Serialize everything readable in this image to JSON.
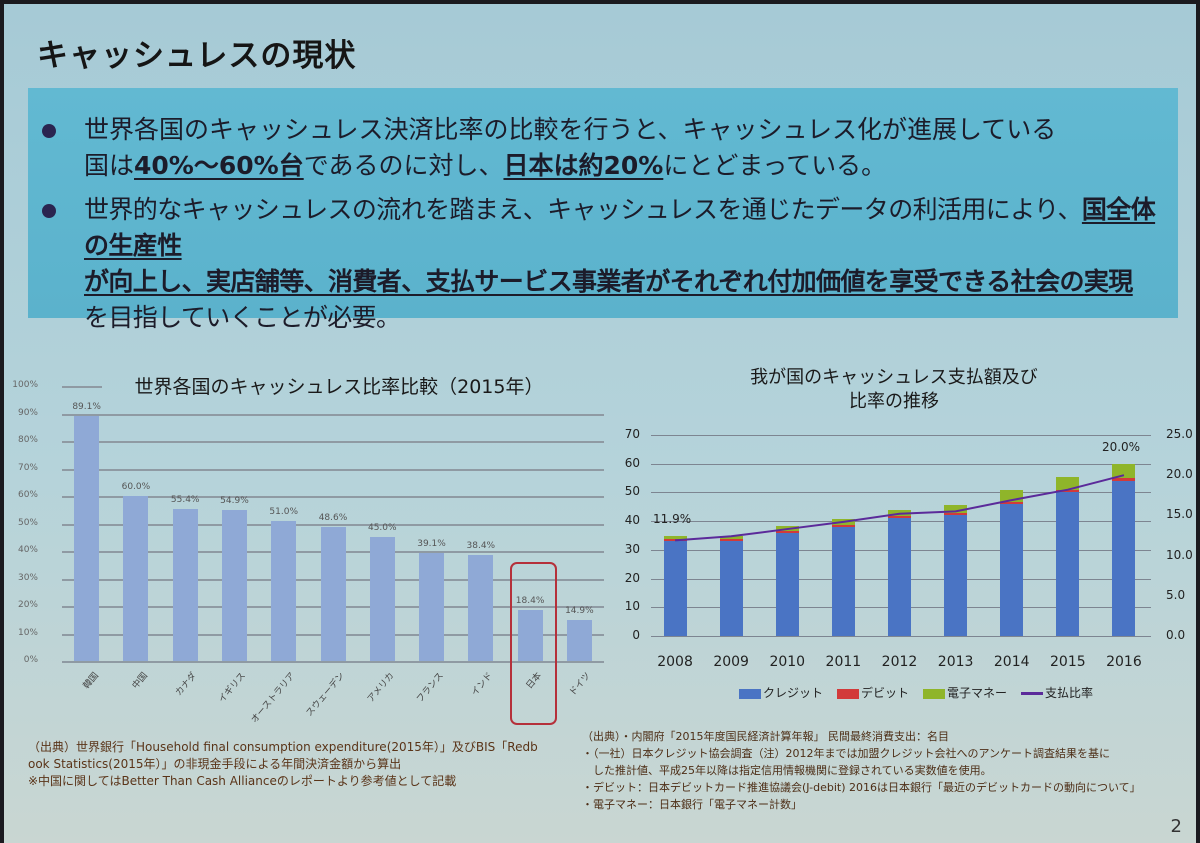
{
  "slide": {
    "title": "キャッシュレスの現状",
    "page_number": "2",
    "bullets": [
      {
        "line1": "世界各国のキャッシュレス決済比率の比較を行うと、キャッシュレス化が進展している",
        "line2_pre": "国は",
        "line2_b1": "40%～60%台",
        "line2_mid": "であるのに対し、",
        "line2_b2": "日本は約20%",
        "line2_post": "にとどまっている。"
      },
      {
        "line1_pre": "世界的なキャッシュレスの流れを踏まえ、キャッシュレスを通じたデータの利活用により、",
        "line1_b": "国全体の生産性",
        "line2_b": "が向上し、実店舗等、消費者、支払サービス事業者がそれぞれ付加価値を享受できる社会の実現",
        "line3": "を目指していくことが必要。"
      }
    ],
    "left_note": {
      "line1": "（出典）世界銀行「Household final consumption expenditure(2015年）」及びBIS「Redb",
      "line2": "ook Statistics(2015年）」の非現金手段による年間決済金額から算出",
      "line3": "※中国に関してはBetter Than Cash Allianceのレポートより参考値として記載"
    },
    "right_note": {
      "line1": "（出典）・内閣府「2015年度国民経済計算年報」 民間最終消費支出：名目",
      "line2": "・（一社）日本クレジット協会調査（注）2012年までは加盟クレジット会社へのアンケート調査結果を基に",
      "line3": "　した推計値、平成25年以降は指定信用情報機関に登録されている実数値を使用。",
      "line4": "・デビット：日本デビットカード推進協議会(J-debit) 2016は日本銀行「最近のデビットカードの動向について」",
      "line5": "・電子マネー：日本銀行「電子マネー計数」"
    }
  },
  "chart_data": [
    {
      "type": "bar",
      "title": "世界各国のキャッシュレス比率比較（2015年）",
      "categories": [
        "韓国",
        "中国",
        "カナダ",
        "イギリス",
        "オーストラリア",
        "スウェーデン",
        "アメリカ",
        "フランス",
        "インド",
        "日本",
        "ドイツ"
      ],
      "values": [
        89.1,
        60.0,
        55.4,
        54.9,
        51.0,
        48.6,
        45.0,
        39.1,
        38.4,
        18.4,
        14.9
      ],
      "value_labels": [
        "89.1%",
        "60.0%",
        "55.4%",
        "54.9%",
        "51.0%",
        "48.6%",
        "45.0%",
        "39.1%",
        "38.4%",
        "18.4%",
        "14.9%"
      ],
      "yticks": [
        "0%",
        "10%",
        "20%",
        "30%",
        "40%",
        "50%",
        "60%",
        "70%",
        "80%",
        "90%",
        "100%"
      ],
      "ylim": [
        0,
        100
      ],
      "xlabel": "",
      "ylabel": "",
      "grid": true,
      "highlight": "日本",
      "bar_color": "#8fa9d6",
      "highlight_color": "#b5303a"
    },
    {
      "type": "bar+line",
      "title": "我が国のキャッシュレス支払額及び比率の推移",
      "title_line1": "我が国のキャッシュレス支払額及び",
      "title_line2": "比率の推移",
      "categories": [
        "2008",
        "2009",
        "2010",
        "2011",
        "2012",
        "2013",
        "2014",
        "2015",
        "2016"
      ],
      "series": [
        {
          "name": "クレジット",
          "kind": "stacked-bar",
          "color": "#4a74c4",
          "values": [
            33.0,
            33.0,
            36.0,
            38.0,
            41.0,
            42.0,
            46.0,
            50.0,
            54.0
          ]
        },
        {
          "name": "デビット",
          "kind": "stacked-bar",
          "color": "#d23a3a",
          "values": [
            0.7,
            0.7,
            0.7,
            0.7,
            0.7,
            0.7,
            0.7,
            0.8,
            0.9
          ]
        },
        {
          "name": "電子マネー",
          "kind": "stacked-bar",
          "color": "#8fb52a",
          "values": [
            1.0,
            1.2,
            1.6,
            2.0,
            2.2,
            2.8,
            4.0,
            4.5,
            5.1
          ]
        },
        {
          "name": "支払比率",
          "kind": "line",
          "axis": "right",
          "color": "#5b2a9a",
          "values": [
            11.9,
            12.4,
            13.3,
            14.2,
            15.2,
            15.5,
            16.9,
            18.2,
            20.0
          ]
        }
      ],
      "annotations": [
        "11.9%",
        "20.0%"
      ],
      "yticks_left": [
        "0",
        "10",
        "20",
        "30",
        "40",
        "50",
        "60",
        "70"
      ],
      "yticks_right": [
        "0.0",
        "5.0",
        "10.0",
        "15.0",
        "20.0",
        "25.0"
      ],
      "ylim_left": [
        0,
        70
      ],
      "ylim_right": [
        0,
        25
      ],
      "grid": true,
      "legend_position": "bottom"
    }
  ]
}
